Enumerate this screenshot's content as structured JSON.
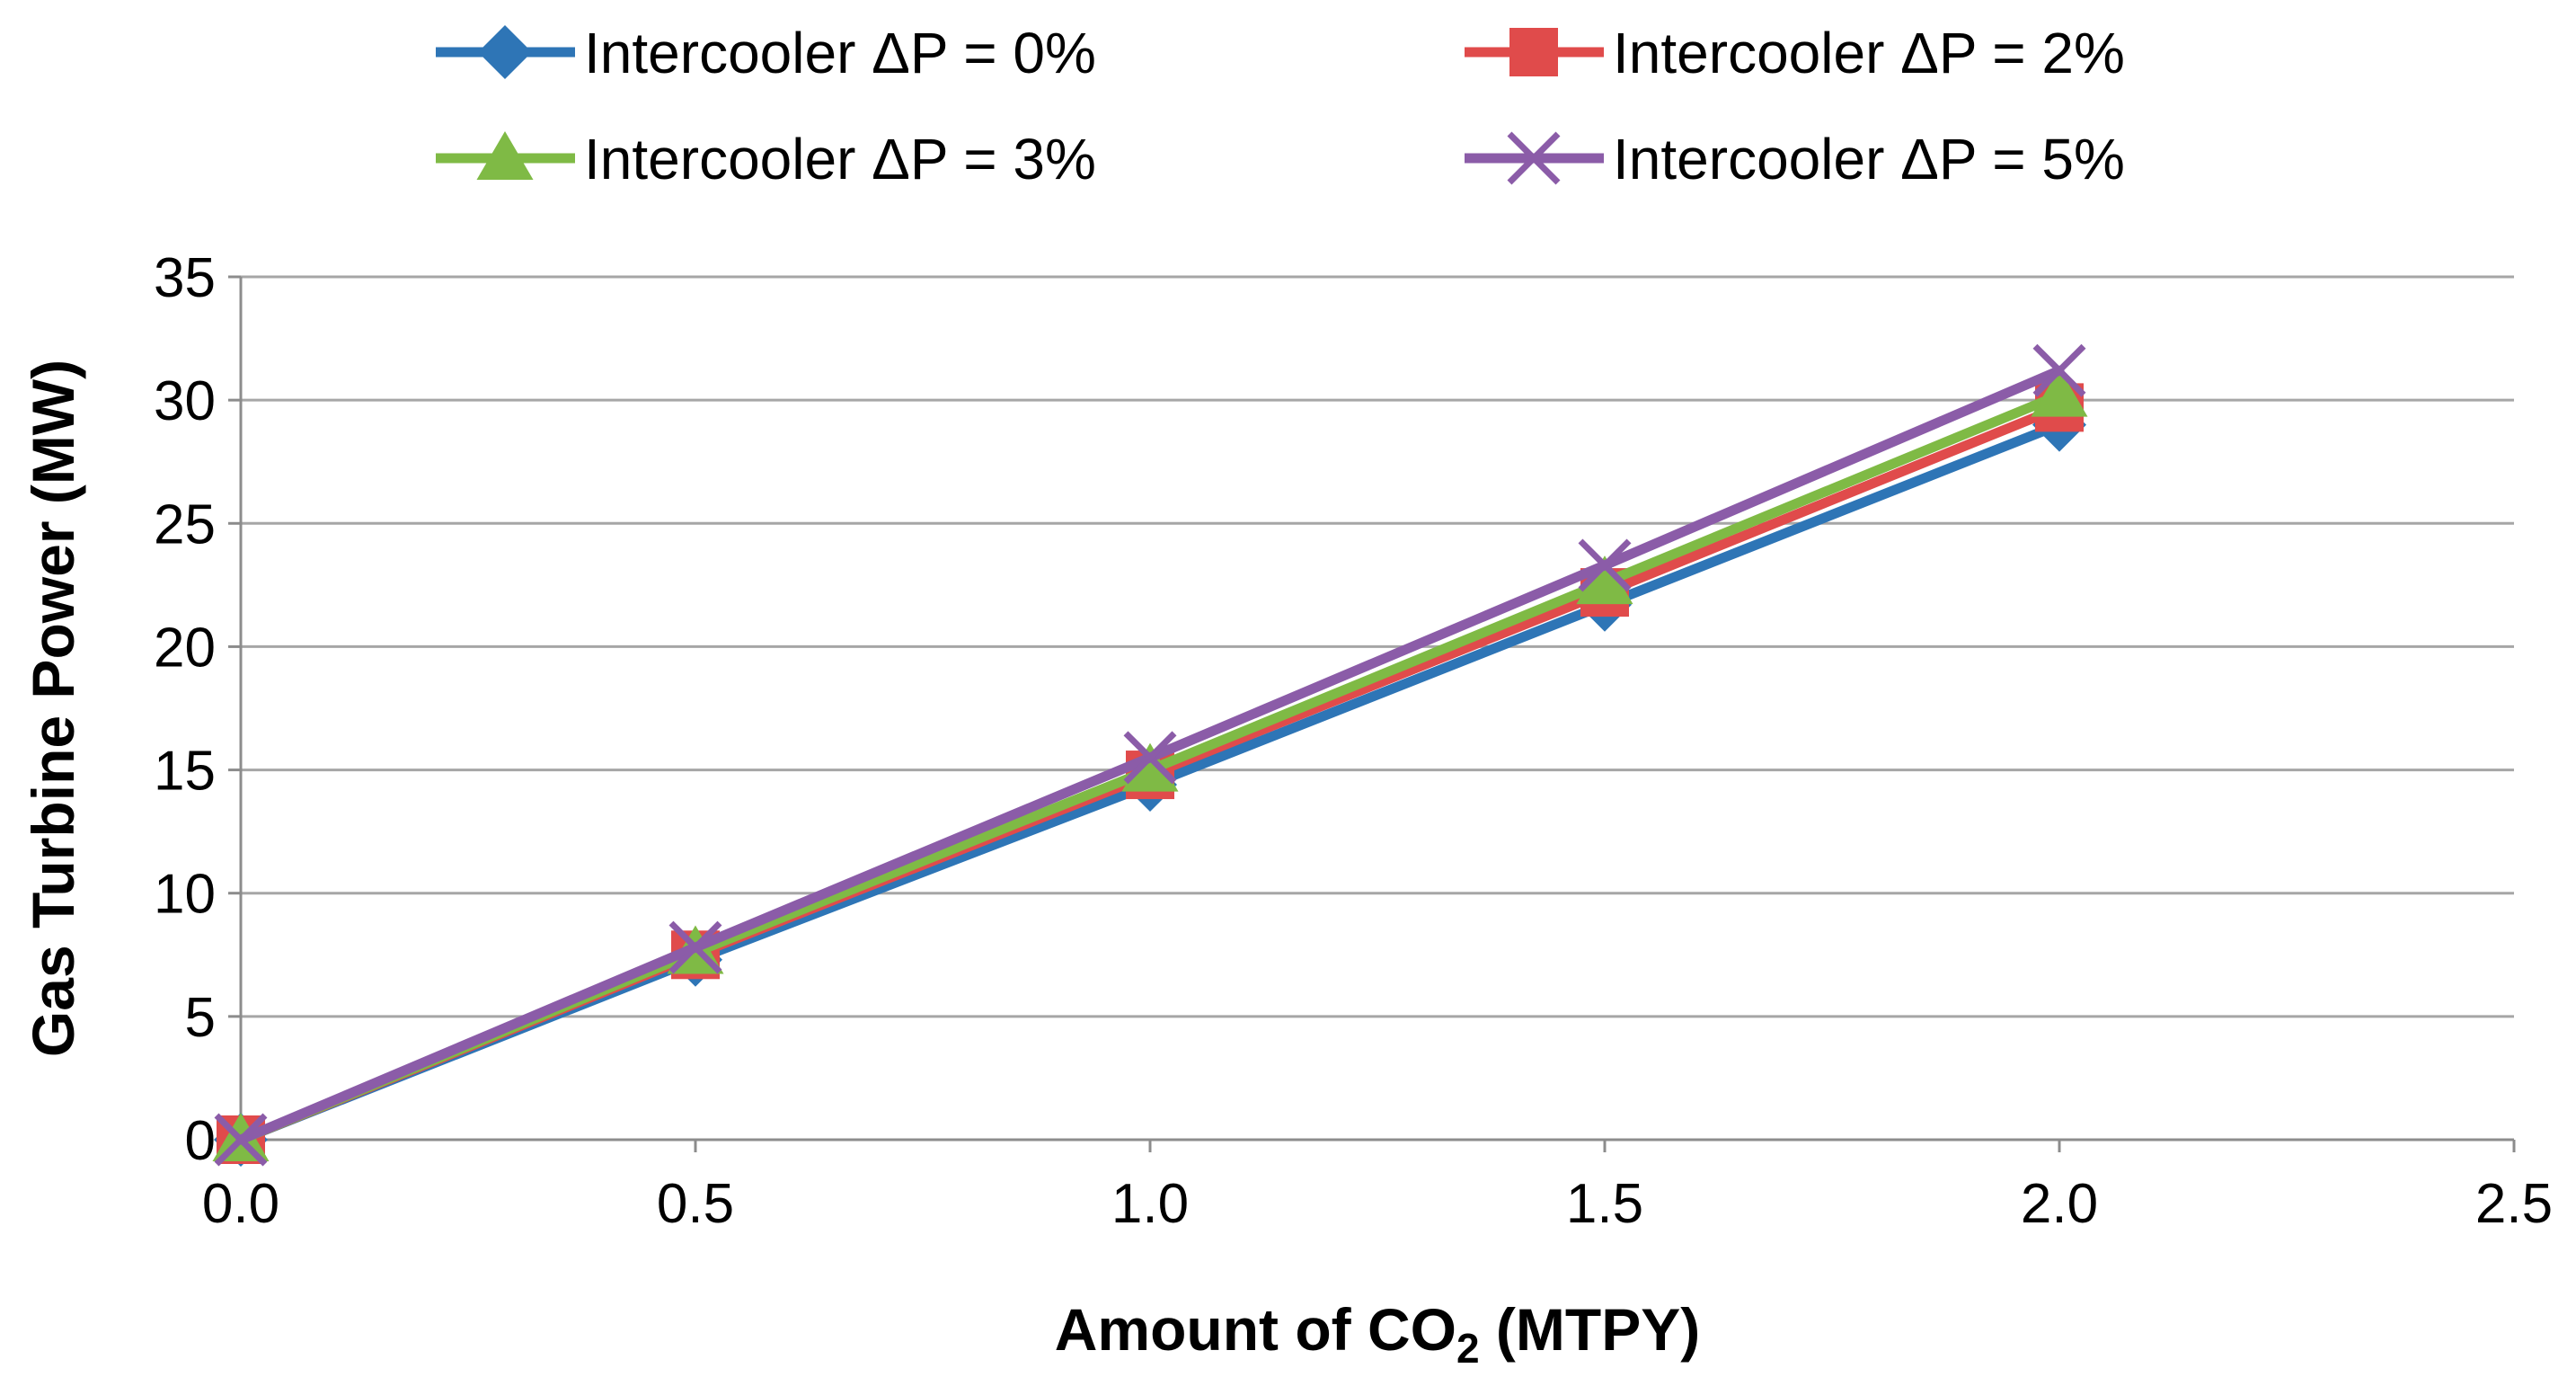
{
  "chart_data": {
    "type": "line",
    "title": "",
    "xlabel": {
      "main": "Amount of CO",
      "subscript": "2",
      "suffix": " (MTPY)"
    },
    "ylabel": "Gas Turbine Power (MW)",
    "xlim": [
      0,
      2.5
    ],
    "ylim": [
      0,
      35
    ],
    "xticks": [
      0,
      0.5,
      1.0,
      1.5,
      2.0,
      2.5
    ],
    "xtick_labels": [
      "0.0",
      "0.5",
      "1.0",
      "1.5",
      "2.0",
      "2.5"
    ],
    "yticks": [
      0,
      5,
      10,
      15,
      20,
      25,
      30,
      35
    ],
    "ytick_labels": [
      "0",
      "5",
      "10",
      "15",
      "20",
      "25",
      "30",
      "35"
    ],
    "grid": "horizontal",
    "legend_position": "top",
    "x": [
      0,
      0.5,
      1.0,
      1.5,
      2.0
    ],
    "series": [
      {
        "name": "Intercooler ΔP = 0%",
        "color": "#2e75b6",
        "marker": "diamond",
        "values": [
          0,
          7.3,
          14.4,
          21.7,
          29.0
        ]
      },
      {
        "name": "Intercooler ΔP = 2%",
        "color": "#e04b4b",
        "marker": "square",
        "values": [
          0,
          7.5,
          14.8,
          22.2,
          29.7
        ]
      },
      {
        "name": "Intercooler ΔP = 3%",
        "color": "#7fba45",
        "marker": "triangle",
        "values": [
          0,
          7.6,
          15.0,
          22.6,
          30.2
        ]
      },
      {
        "name": "Intercooler ΔP = 5%",
        "color": "#8b5ca8",
        "marker": "x",
        "values": [
          0,
          7.8,
          15.5,
          23.3,
          31.2
        ]
      }
    ]
  }
}
